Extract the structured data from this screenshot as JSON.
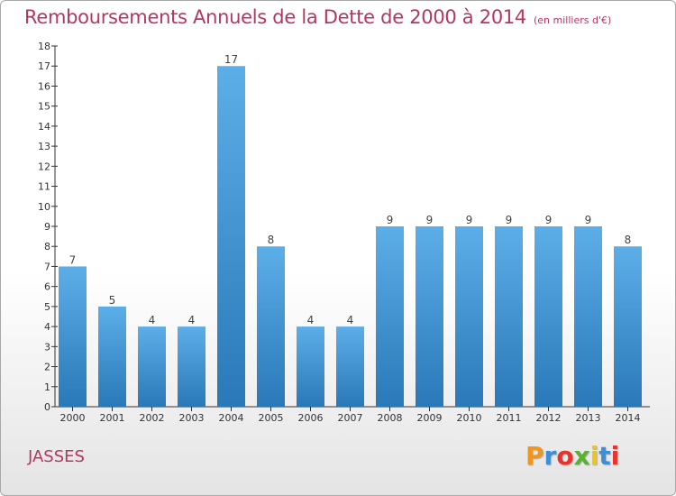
{
  "header": {
    "title": "Remboursements Annuels de la Dette de 2000 à 2014",
    "unit": "(en milliers d'€)"
  },
  "footer": {
    "commune": "JASSES",
    "logo": "Proxiti",
    "logo_colors": [
      "#f0961e",
      "#3c8fd6",
      "#e8332a",
      "#5ab031",
      "#f0c419",
      "#3c8fd6",
      "#e8332a"
    ]
  },
  "chart_data": {
    "type": "bar",
    "categories": [
      "2000",
      "2001",
      "2002",
      "2003",
      "2004",
      "2005",
      "2006",
      "2007",
      "2008",
      "2009",
      "2010",
      "2011",
      "2012",
      "2013",
      "2014"
    ],
    "values": [
      7,
      5,
      4,
      4,
      17,
      8,
      4,
      4,
      9,
      9,
      9,
      9,
      9,
      9,
      8
    ],
    "ylim": [
      0,
      18
    ],
    "yticks": [
      "0",
      "1",
      "2",
      "3",
      "4",
      "5",
      "6",
      "7",
      "8",
      "9",
      "10",
      "11",
      "12",
      "13",
      "14",
      "15",
      "16",
      "17",
      "18"
    ],
    "grid": false,
    "bar_color_top": "#5caee8",
    "bar_color_bottom": "#2a78b8"
  }
}
